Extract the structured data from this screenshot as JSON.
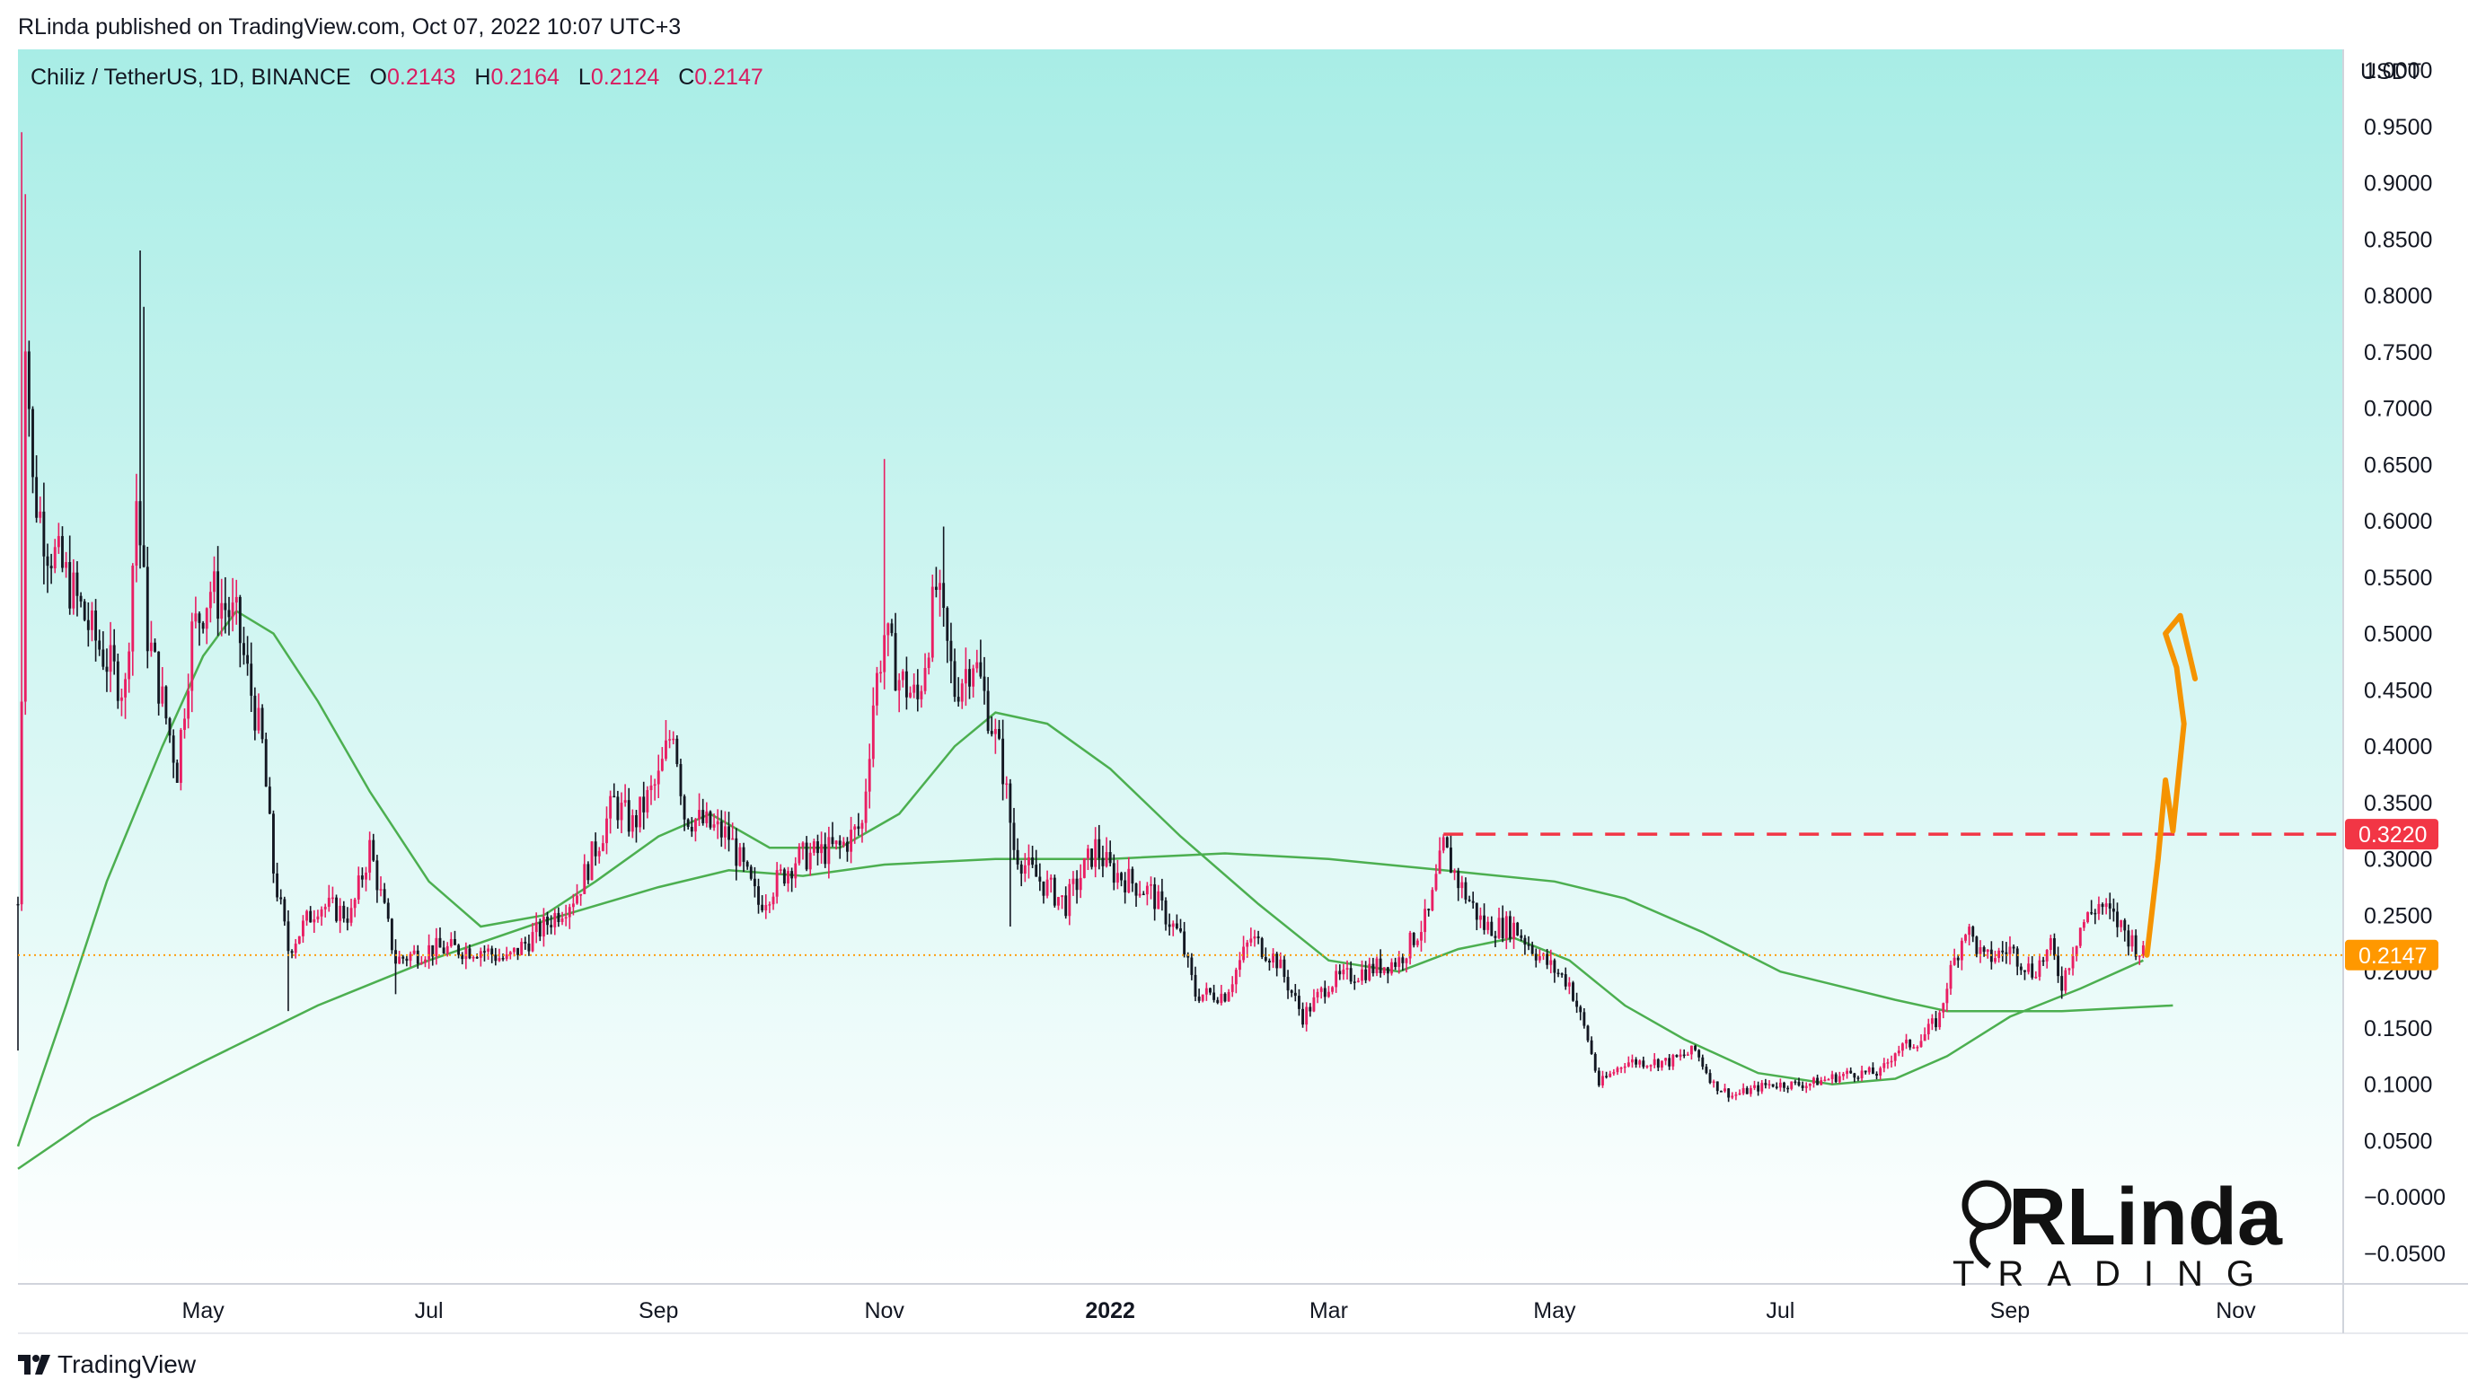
{
  "header": {
    "publish_line": "RLinda published on TradingView.com, Oct 07, 2022 10:07 UTC+3"
  },
  "legend": {
    "symbol": "Chiliz / TetherUS, 1D, BINANCE",
    "open_label": "O",
    "open": "0.2143",
    "high_label": "H",
    "high": "0.2164",
    "low_label": "L",
    "low": "0.2124",
    "close_label": "C",
    "close": "0.2147"
  },
  "footer": {
    "brand": "TradingView"
  },
  "watermark": {
    "main": "RLinda",
    "sub": "TRADING"
  },
  "colors": {
    "up": "#e91e63",
    "down": "#131722",
    "ma": "#4caf50",
    "resistance": "#f23645",
    "price_line": "#ff9800",
    "arrow": "#f59300",
    "bg_top": "#a8ede6",
    "bg_bottom": "#ffffff"
  },
  "chart_data": {
    "type": "candlestick",
    "y_unit": "USDT",
    "ylim": [
      -0.0755,
      1.0185
    ],
    "yticks": [
      "1.0000",
      "0.9500",
      "0.9000",
      "0.8500",
      "0.8000",
      "0.7500",
      "0.7000",
      "0.6500",
      "0.6000",
      "0.5500",
      "0.5000",
      "0.4500",
      "0.4000",
      "0.3500",
      "0.3000",
      "0.2500",
      "0.2000",
      "0.1500",
      "0.1000",
      "0.0500",
      "−0.0000",
      "−0.0500"
    ],
    "xlim": [
      "2021-03-12",
      "2022-11-30"
    ],
    "xticks": [
      {
        "label": "May",
        "date": "2021-05-01",
        "bold": false
      },
      {
        "label": "Jul",
        "date": "2021-07-01",
        "bold": false
      },
      {
        "label": "Sep",
        "date": "2021-09-01",
        "bold": false
      },
      {
        "label": "Nov",
        "date": "2021-11-01",
        "bold": false
      },
      {
        "label": "2022",
        "date": "2022-01-01",
        "bold": true
      },
      {
        "label": "Mar",
        "date": "2022-03-01",
        "bold": false
      },
      {
        "label": "May",
        "date": "2022-05-01",
        "bold": false
      },
      {
        "label": "Jul",
        "date": "2022-07-01",
        "bold": false
      },
      {
        "label": "Sep",
        "date": "2022-09-01",
        "bold": false
      },
      {
        "label": "Nov",
        "date": "2022-11-01",
        "bold": false
      }
    ],
    "price_path": [
      [
        "2021-03-12",
        0.26
      ],
      [
        "2021-03-13",
        0.45
      ],
      [
        "2021-03-14",
        0.78
      ],
      [
        "2021-03-16",
        0.63
      ],
      [
        "2021-03-20",
        0.58
      ],
      [
        "2021-03-25",
        0.55
      ],
      [
        "2021-04-01",
        0.5
      ],
      [
        "2021-04-06",
        0.47
      ],
      [
        "2021-04-10",
        0.45
      ],
      [
        "2021-04-13",
        0.62
      ],
      [
        "2021-04-16",
        0.5
      ],
      [
        "2021-04-20",
        0.44
      ],
      [
        "2021-04-24",
        0.38
      ],
      [
        "2021-04-28",
        0.5
      ],
      [
        "2021-05-03",
        0.54
      ],
      [
        "2021-05-10",
        0.51
      ],
      [
        "2021-05-17",
        0.4
      ],
      [
        "2021-05-20",
        0.29
      ],
      [
        "2021-05-24",
        0.22
      ],
      [
        "2021-06-01",
        0.26
      ],
      [
        "2021-06-10",
        0.25
      ],
      [
        "2021-06-15",
        0.31
      ],
      [
        "2021-06-22",
        0.21
      ],
      [
        "2021-07-01",
        0.22
      ],
      [
        "2021-07-15",
        0.22
      ],
      [
        "2021-07-22",
        0.21
      ],
      [
        "2021-08-01",
        0.24
      ],
      [
        "2021-08-10",
        0.27
      ],
      [
        "2021-08-20",
        0.35
      ],
      [
        "2021-08-25",
        0.33
      ],
      [
        "2021-09-01",
        0.37
      ],
      [
        "2021-09-05",
        0.42
      ],
      [
        "2021-09-08",
        0.34
      ],
      [
        "2021-09-20",
        0.32
      ],
      [
        "2021-09-28",
        0.26
      ],
      [
        "2021-10-08",
        0.3
      ],
      [
        "2021-10-20",
        0.31
      ],
      [
        "2021-10-26",
        0.33
      ],
      [
        "2021-10-29",
        0.44
      ],
      [
        "2021-11-01",
        0.5
      ],
      [
        "2021-11-05",
        0.46
      ],
      [
        "2021-11-10",
        0.44
      ],
      [
        "2021-11-15",
        0.54
      ],
      [
        "2021-11-20",
        0.45
      ],
      [
        "2021-11-25",
        0.48
      ],
      [
        "2021-11-30",
        0.42
      ],
      [
        "2021-12-03",
        0.38
      ],
      [
        "2021-12-06",
        0.31
      ],
      [
        "2021-12-10",
        0.29
      ],
      [
        "2021-12-20",
        0.26
      ],
      [
        "2021-12-28",
        0.31
      ],
      [
        "2022-01-01",
        0.29
      ],
      [
        "2022-01-12",
        0.27
      ],
      [
        "2022-01-20",
        0.23
      ],
      [
        "2022-01-24",
        0.18
      ],
      [
        "2022-02-01",
        0.18
      ],
      [
        "2022-02-08",
        0.23
      ],
      [
        "2022-02-15",
        0.21
      ],
      [
        "2022-02-22",
        0.16
      ],
      [
        "2022-03-01",
        0.19
      ],
      [
        "2022-03-10",
        0.2
      ],
      [
        "2022-03-20",
        0.21
      ],
      [
        "2022-03-28",
        0.25
      ],
      [
        "2022-04-01",
        0.31
      ],
      [
        "2022-04-05",
        0.28
      ],
      [
        "2022-04-12",
        0.24
      ],
      [
        "2022-04-20",
        0.24
      ],
      [
        "2022-04-28",
        0.21
      ],
      [
        "2022-05-05",
        0.19
      ],
      [
        "2022-05-10",
        0.14
      ],
      [
        "2022-05-13",
        0.1
      ],
      [
        "2022-05-20",
        0.12
      ],
      [
        "2022-06-01",
        0.12
      ],
      [
        "2022-06-08",
        0.13
      ],
      [
        "2022-06-13",
        0.1
      ],
      [
        "2022-06-18",
        0.09
      ],
      [
        "2022-06-28",
        0.1
      ],
      [
        "2022-07-08",
        0.1
      ],
      [
        "2022-07-20",
        0.11
      ],
      [
        "2022-07-28",
        0.11
      ],
      [
        "2022-08-01",
        0.13
      ],
      [
        "2022-08-08",
        0.14
      ],
      [
        "2022-08-13",
        0.16
      ],
      [
        "2022-08-15",
        0.19
      ],
      [
        "2022-08-20",
        0.24
      ],
      [
        "2022-08-25",
        0.21
      ],
      [
        "2022-09-01",
        0.22
      ],
      [
        "2022-09-07",
        0.2
      ],
      [
        "2022-09-12",
        0.22
      ],
      [
        "2022-09-15",
        0.19
      ],
      [
        "2022-09-20",
        0.24
      ],
      [
        "2022-09-25",
        0.26
      ],
      [
        "2022-10-01",
        0.24
      ],
      [
        "2022-10-07",
        0.2147
      ]
    ],
    "spikes": [
      {
        "date": "2021-03-13",
        "high": 0.945
      },
      {
        "date": "2021-03-14",
        "high": 0.89
      },
      {
        "date": "2021-04-14",
        "high": 0.84
      },
      {
        "date": "2021-04-15",
        "high": 0.79
      },
      {
        "date": "2021-11-01",
        "high": 0.655
      },
      {
        "date": "2021-11-17",
        "high": 0.595
      },
      {
        "date": "2021-03-12",
        "low": 0.13
      },
      {
        "date": "2021-05-24",
        "low": 0.165
      },
      {
        "date": "2021-06-22",
        "low": 0.18
      },
      {
        "date": "2021-12-05",
        "low": 0.24
      }
    ],
    "moving_averages": [
      {
        "points": [
          [
            "2021-03-12",
            0.045
          ],
          [
            "2021-03-25",
            0.17
          ],
          [
            "2021-04-05",
            0.28
          ],
          [
            "2021-04-20",
            0.4
          ],
          [
            "2021-05-01",
            0.48
          ],
          [
            "2021-05-10",
            0.52
          ],
          [
            "2021-05-20",
            0.5
          ],
          [
            "2021-06-01",
            0.44
          ],
          [
            "2021-06-15",
            0.36
          ],
          [
            "2021-07-01",
            0.28
          ],
          [
            "2021-07-15",
            0.24
          ],
          [
            "2021-08-01",
            0.25
          ],
          [
            "2021-08-15",
            0.28
          ],
          [
            "2021-09-01",
            0.32
          ],
          [
            "2021-09-15",
            0.34
          ],
          [
            "2021-10-01",
            0.31
          ],
          [
            "2021-10-20",
            0.31
          ],
          [
            "2021-11-05",
            0.34
          ],
          [
            "2021-11-20",
            0.4
          ],
          [
            "2021-12-01",
            0.43
          ],
          [
            "2021-12-15",
            0.42
          ],
          [
            "2022-01-01",
            0.38
          ],
          [
            "2022-01-20",
            0.32
          ],
          [
            "2022-02-10",
            0.26
          ],
          [
            "2022-03-01",
            0.21
          ],
          [
            "2022-03-20",
            0.2
          ],
          [
            "2022-04-05",
            0.22
          ],
          [
            "2022-04-20",
            0.23
          ],
          [
            "2022-05-05",
            0.21
          ],
          [
            "2022-05-20",
            0.17
          ],
          [
            "2022-06-05",
            0.14
          ],
          [
            "2022-06-25",
            0.11
          ],
          [
            "2022-07-15",
            0.1
          ],
          [
            "2022-08-01",
            0.105
          ],
          [
            "2022-08-15",
            0.125
          ],
          [
            "2022-09-01",
            0.16
          ],
          [
            "2022-09-20",
            0.185
          ],
          [
            "2022-10-07",
            0.21
          ]
        ]
      },
      {
        "points": [
          [
            "2021-03-12",
            0.025
          ],
          [
            "2021-04-01",
            0.07
          ],
          [
            "2021-05-01",
            0.12
          ],
          [
            "2021-06-01",
            0.17
          ],
          [
            "2021-07-01",
            0.21
          ],
          [
            "2021-08-01",
            0.245
          ],
          [
            "2021-09-01",
            0.275
          ],
          [
            "2021-09-20",
            0.29
          ],
          [
            "2021-10-10",
            0.285
          ],
          [
            "2021-11-01",
            0.295
          ],
          [
            "2021-12-01",
            0.3
          ],
          [
            "2022-01-01",
            0.3
          ],
          [
            "2022-02-01",
            0.305
          ],
          [
            "2022-03-01",
            0.3
          ],
          [
            "2022-04-01",
            0.29
          ],
          [
            "2022-05-01",
            0.28
          ],
          [
            "2022-05-20",
            0.265
          ],
          [
            "2022-06-10",
            0.235
          ],
          [
            "2022-07-01",
            0.2
          ],
          [
            "2022-08-01",
            0.175
          ],
          [
            "2022-08-15",
            0.165
          ],
          [
            "2022-09-15",
            0.165
          ],
          [
            "2022-10-15",
            0.17
          ]
        ]
      }
    ],
    "annotations": {
      "resistance": {
        "value": 0.322,
        "label": "0.3220",
        "from": "2022-04-01"
      },
      "last_price": {
        "value": 0.2147,
        "label": "0.2147"
      },
      "forecast_arrow": [
        [
          "2022-10-08",
          0.2147
        ],
        [
          "2022-10-11",
          0.3
        ],
        [
          "2022-10-13",
          0.37
        ],
        [
          "2022-10-15",
          0.325
        ],
        [
          "2022-10-18",
          0.42
        ],
        [
          "2022-10-16",
          0.47
        ],
        [
          "2022-10-13",
          0.5
        ],
        [
          "2022-10-17",
          0.516
        ],
        [
          "2022-10-21",
          0.46
        ]
      ]
    }
  }
}
